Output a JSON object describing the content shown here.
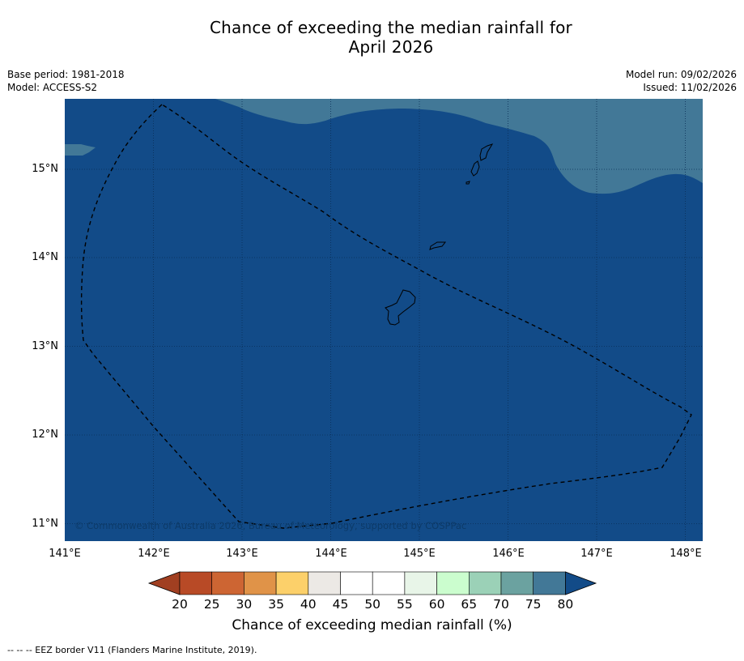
{
  "title": {
    "line1": "Chance of exceeding the median rainfall for",
    "line2": "April 2026"
  },
  "meta_left": {
    "base_period": "Base period: 1981-2018",
    "model": "Model: ACCESS-S2"
  },
  "meta_right": {
    "model_run": "Model run: 09/02/2026",
    "issued": "Issued: 11/02/2026"
  },
  "map": {
    "copyright": "© Commonwealth of Australia 2026, Bureau of Meteorology, supported by COSPPac",
    "latitude_labels": [
      "15°N",
      "14°N",
      "13°N",
      "12°N",
      "11°N"
    ],
    "longitude_labels": [
      "141°E",
      "142°E",
      "143°E",
      "144°E",
      "145°E",
      "146°E",
      "147°E",
      "148°E"
    ],
    "extent": {
      "lon": [
        141.0,
        148.2
      ],
      "lat": [
        10.8,
        15.8
      ]
    },
    "fill_categories": [
      "75-80",
      "80+"
    ]
  },
  "colorbar": {
    "ticks": [
      "20",
      "25",
      "30",
      "35",
      "40",
      "45",
      "50",
      "55",
      "60",
      "65",
      "70",
      "75",
      "80"
    ],
    "label": "Chance of exceeding median rainfall (%)",
    "colors": [
      "#a13f21",
      "#b84a26",
      "#cd6533",
      "#e09348",
      "#fcd06a",
      "#ece9e5",
      "#ffffff",
      "#ffffff",
      "#e8f5e8",
      "#cbfdce",
      "#9bd1b7",
      "#6ba2a0",
      "#427897",
      "#124b88"
    ]
  },
  "footnote": "--  --  -- EEZ border V11 (Flanders Marine Institute, 2019)."
}
